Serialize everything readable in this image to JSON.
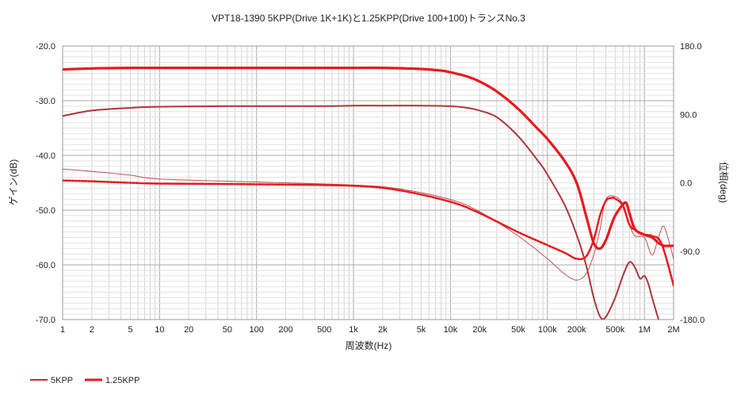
{
  "chart_data": {
    "type": "line",
    "title": "VPT18-1390 5KPP(Drive 1K+1K)と1.25KPP(Drive 100+100)トランスNo.3",
    "xlabel": "周波数(Hz)",
    "ylabel_left": "ゲイン(dB)",
    "ylabel_right": "位相(deg)",
    "xscale": "log",
    "xlim": [
      1,
      2000000
    ],
    "ylim_left": [
      -70,
      -20
    ],
    "ylim_right": [
      -180,
      180
    ],
    "grid": true,
    "legend_position": "bottom-left",
    "x_ticks": [
      {
        "value": 1,
        "label": "1"
      },
      {
        "value": 2,
        "label": "2"
      },
      {
        "value": 5,
        "label": "5"
      },
      {
        "value": 10,
        "label": "10"
      },
      {
        "value": 20,
        "label": "20"
      },
      {
        "value": 50,
        "label": "50"
      },
      {
        "value": 100,
        "label": "100"
      },
      {
        "value": 200,
        "label": "200"
      },
      {
        "value": 500,
        "label": "500"
      },
      {
        "value": 1000,
        "label": "1k"
      },
      {
        "value": 2000,
        "label": "2k"
      },
      {
        "value": 5000,
        "label": "5k"
      },
      {
        "value": 10000,
        "label": "10k"
      },
      {
        "value": 20000,
        "label": "20k"
      },
      {
        "value": 50000,
        "label": "50k"
      },
      {
        "value": 100000,
        "label": "100k"
      },
      {
        "value": 200000,
        "label": "200k"
      },
      {
        "value": 500000,
        "label": "500k"
      },
      {
        "value": 1000000,
        "label": "1M"
      },
      {
        "value": 2000000,
        "label": "2M"
      }
    ],
    "y_left_ticks": [
      {
        "value": -20,
        "label": "-20.0"
      },
      {
        "value": -30,
        "label": "-30.0"
      },
      {
        "value": -40,
        "label": "-40.0"
      },
      {
        "value": -50,
        "label": "-50.0"
      },
      {
        "value": -60,
        "label": "-60.0"
      },
      {
        "value": -70,
        "label": "-70.0"
      }
    ],
    "y_right_ticks": [
      {
        "value": 180,
        "label": "180.0"
      },
      {
        "value": 90,
        "label": "90.0"
      },
      {
        "value": 0,
        "label": "0.0"
      },
      {
        "value": -90,
        "label": "-90.0"
      },
      {
        "value": -180,
        "label": "-180.0"
      }
    ],
    "series": [
      {
        "name": "5KPP",
        "color": "#b0343a",
        "gain_db": {
          "x": [
            1,
            2,
            5,
            10,
            50,
            100,
            500,
            1000,
            2000,
            5000,
            10000,
            15000,
            20000,
            30000,
            50000,
            80000,
            100000,
            150000,
            200000,
            250000,
            300000,
            350000,
            400000,
            500000,
            600000,
            700000,
            800000,
            900000,
            1000000,
            1100000,
            1200000,
            1400000
          ],
          "y": [
            -32.8,
            -31.8,
            -31.3,
            -31.1,
            -31.0,
            -31.0,
            -31.0,
            -30.9,
            -30.9,
            -30.9,
            -31.0,
            -31.3,
            -31.8,
            -33.0,
            -36.5,
            -41.0,
            -43.5,
            -49.0,
            -54.5,
            -60.0,
            -66.0,
            -69.5,
            -69.5,
            -66.0,
            -62.0,
            -59.5,
            -60.5,
            -62.5,
            -62.0,
            -63.5,
            -66.0,
            -70.0
          ]
        },
        "phase_deg": {
          "x": [
            1,
            2,
            5,
            10,
            100,
            1000,
            3000,
            10000,
            20000,
            50000,
            100000,
            150000,
            200000,
            250000,
            300000,
            350000,
            400000,
            500000,
            600000,
            700000,
            800000,
            1000000,
            1200000,
            1400000,
            1600000,
            2000000
          ],
          "y": [
            18,
            15,
            10,
            5,
            1,
            -3,
            -8,
            -22,
            -38,
            -70,
            -100,
            -120,
            -128,
            -120,
            -95,
            -60,
            -22,
            -18,
            -28,
            -55,
            -70,
            -72,
            -95,
            -72,
            -58,
            -100
          ]
        }
      },
      {
        "name": "1.25KPP",
        "color": "#e8191e",
        "gain_db": {
          "x": [
            1,
            2,
            5,
            10,
            50,
            100,
            500,
            1000,
            2000,
            5000,
            8000,
            10000,
            15000,
            20000,
            30000,
            50000,
            80000,
            100000,
            150000,
            200000,
            250000,
            300000,
            350000,
            400000,
            450000,
            500000,
            600000,
            650000,
            700000,
            800000,
            1000000,
            1200000,
            1400000,
            1600000,
            2000000
          ],
          "y": [
            -24.3,
            -24.1,
            -24.0,
            -24.0,
            -24.0,
            -24.0,
            -24.0,
            -24.0,
            -24.0,
            -24.2,
            -24.5,
            -24.8,
            -25.6,
            -26.5,
            -28.3,
            -31.5,
            -35.2,
            -37.0,
            -41.0,
            -45.0,
            -51.0,
            -56.0,
            -57.0,
            -55.5,
            -53.0,
            -51.0,
            -49.0,
            -48.7,
            -50.5,
            -53.5,
            -54.5,
            -55.0,
            -56.0,
            -56.5,
            -56.5
          ]
        },
        "phase_deg": {
          "x": [
            1,
            2,
            5,
            10,
            100,
            1000,
            3000,
            10000,
            20000,
            50000,
            100000,
            150000,
            200000,
            250000,
            300000,
            350000,
            400000,
            450000,
            500000,
            600000,
            700000,
            800000,
            1000000,
            1200000,
            1500000,
            2000000
          ],
          "y": [
            3,
            2,
            0,
            -1,
            -2,
            -4,
            -10,
            -25,
            -40,
            -65,
            -82,
            -92,
            -100,
            -97,
            -75,
            -42,
            -24,
            -20,
            -21,
            -30,
            -55,
            -62,
            -68,
            -70,
            -80,
            -135
          ]
        }
      }
    ]
  }
}
